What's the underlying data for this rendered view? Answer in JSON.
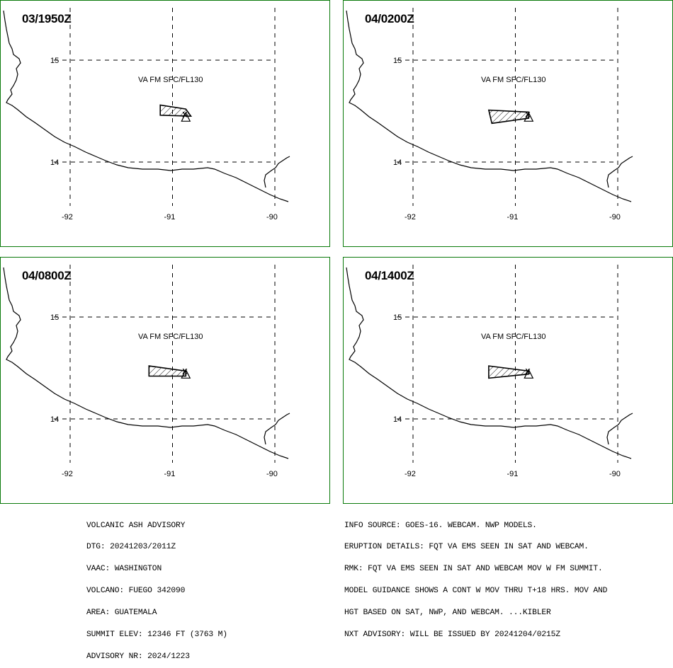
{
  "colors": {
    "frame": "#0a7a0a",
    "line": "#000000",
    "background": "#ffffff"
  },
  "map": {
    "lat_labels": [
      "15",
      "14"
    ],
    "lon_labels": [
      "-92",
      "-91",
      "-90"
    ],
    "ash_cloud_label": "VA FM SFC/FL130",
    "volcano_marker": "X",
    "panels": [
      {
        "time": "03/1950Z",
        "cloud_polygon_lonlat": [
          [
            -91.12,
            14.56
          ],
          [
            -91.12,
            14.46
          ],
          [
            -90.82,
            14.45
          ],
          [
            -90.87,
            14.52
          ]
        ]
      },
      {
        "time": "04/0200Z",
        "cloud_polygon_lonlat": [
          [
            -91.26,
            14.51
          ],
          [
            -91.23,
            14.38
          ],
          [
            -90.87,
            14.43
          ],
          [
            -90.87,
            14.49
          ]
        ]
      },
      {
        "time": "04/0800Z",
        "cloud_polygon_lonlat": [
          [
            -91.23,
            14.52
          ],
          [
            -91.23,
            14.42
          ],
          [
            -90.87,
            14.42
          ],
          [
            -90.87,
            14.47
          ]
        ]
      },
      {
        "time": "04/1400Z",
        "cloud_polygon_lonlat": [
          [
            -91.26,
            14.52
          ],
          [
            -91.26,
            14.4
          ],
          [
            -90.87,
            14.44
          ],
          [
            -90.87,
            14.47
          ]
        ]
      }
    ]
  },
  "advisory_lines": [
    "VOLCANIC ASH ADVISORY",
    "DTG: 20241203/2011Z",
    "VAAC: WASHINGTON",
    "VOLCANO: FUEGO 342090",
    "AREA: GUATEMALA",
    "SUMMIT ELEV: 12346 FT (3763 M)",
    "ADVISORY NR: 2024/1223"
  ],
  "info_lines": [
    "INFO SOURCE: GOES-16. WEBCAM. NWP MODELS.",
    "ERUPTION DETAILS: FQT VA EMS SEEN IN SAT AND WEBCAM.",
    "RMK: FQT VA EMS SEEN IN SAT AND WEBCAM MOV W FM SUMMIT.",
    "MODEL GUIDANCE SHOWS A CONT W MOV THRU T+18 HRS. MOV AND",
    "HGT BASED ON SAT, NWP, AND WEBCAM. ...KIBLER",
    "NXT ADVISORY: WILL BE ISSUED BY 20241204/0215Z"
  ]
}
